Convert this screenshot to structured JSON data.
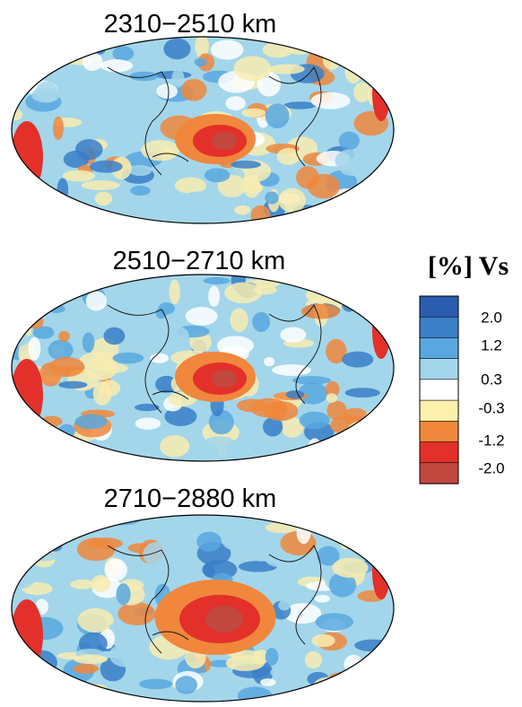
{
  "panels": [
    {
      "title": "2310−2510  km"
    },
    {
      "title": "2510−2710  km"
    },
    {
      "title": "2710−2880  km"
    }
  ],
  "legend": {
    "title": "[%] Vs",
    "labels": [
      "2.0",
      "1.2",
      "0.3",
      "-0.3",
      "-1.2",
      "-2.0"
    ]
  }
}
